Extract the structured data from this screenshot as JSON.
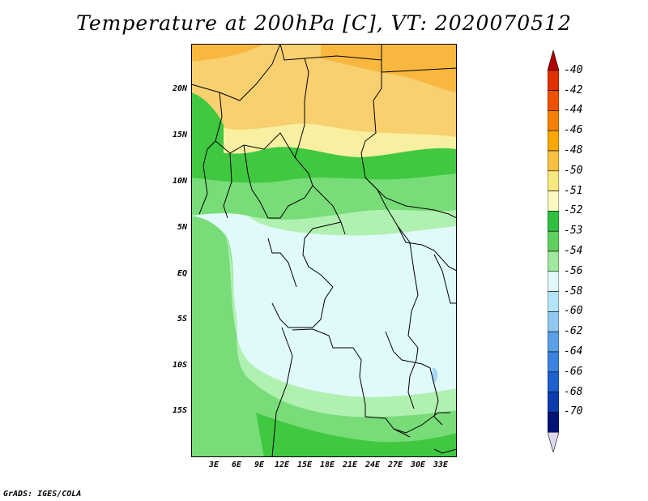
{
  "title": "Temperature at 200hPa [C], VT: 2020070512",
  "credit": "GrADS: IGES/COLA",
  "lat_labels": [
    "20N",
    "15N",
    "10N",
    "5N",
    "EQ",
    "5S",
    "10S",
    "15S"
  ],
  "lon_labels": [
    "3E",
    "6E",
    "9E",
    "12E",
    "15E",
    "18E",
    "21E",
    "24E",
    "27E",
    "30E",
    "33E"
  ],
  "colorbar": {
    "labels": [
      "-40",
      "-42",
      "-44",
      "-46",
      "-48",
      "-50",
      "-51",
      "-52",
      "-53",
      "-54",
      "-56",
      "-58",
      "-60",
      "-62",
      "-64",
      "-66",
      "-68",
      "-70"
    ],
    "colors": [
      "#b00000",
      "#e03000",
      "#f05000",
      "#f58000",
      "#f8a800",
      "#f8c040",
      "#f8e880",
      "#f8f8c0",
      "#30c040",
      "#60d060",
      "#a0e8a0",
      "#e0f8f8",
      "#b4e4f8",
      "#90c8f0",
      "#5aa0e8",
      "#3c82e0",
      "#1e60d0",
      "#0a3cb0",
      "#001478",
      "#e0d8f0"
    ]
  },
  "zones": {
    "orange": "#f8b840",
    "light_orange": "#f8d070",
    "pale_yellow": "#f8f0a0",
    "dark_green": "#40c840",
    "mid_green": "#78dc78",
    "light_green": "#b0f0b0",
    "pale_cyan": "#e0fafa",
    "light_blue": "#a8d8f8"
  }
}
